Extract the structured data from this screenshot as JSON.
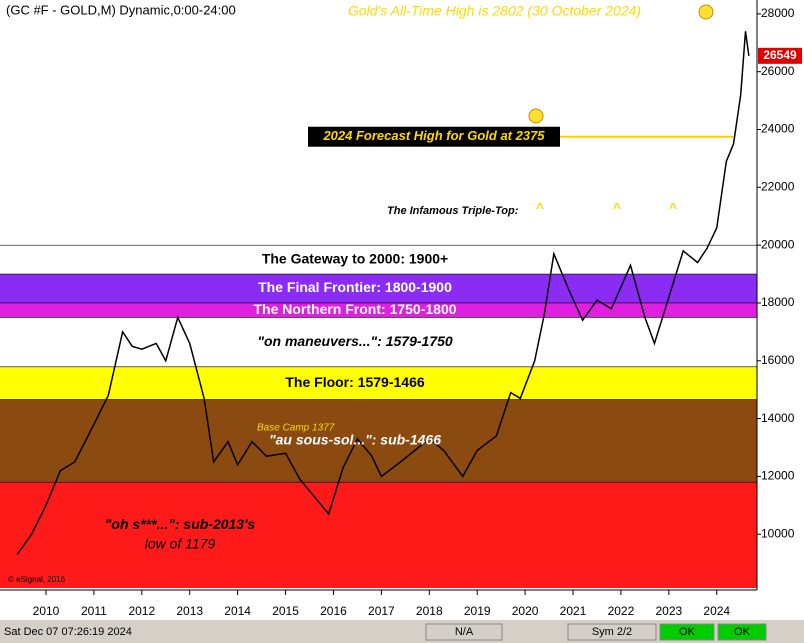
{
  "chart_data": {
    "type": "line",
    "title": "(GC #F - GOLD,M) Dynamic,0:00-24:00",
    "xlim": [
      2009.04,
      2024.84
    ],
    "xticks": [
      2010,
      2011,
      2012,
      2013,
      2014,
      2015,
      2016,
      2017,
      2018,
      2019,
      2020,
      2021,
      2022,
      2023,
      2024
    ],
    "ylim": [
      8140,
      28480
    ],
    "yticks": [
      10000,
      12000,
      14000,
      16000,
      18000,
      20000,
      22000,
      24000,
      26000,
      28000
    ],
    "series": [
      {
        "name": "GC #F",
        "color": "#000000",
        "x": [
          2009.4,
          2009.7,
          2010.0,
          2010.3,
          2010.6,
          2011.0,
          2011.3,
          2011.6,
          2011.8,
          2012.0,
          2012.3,
          2012.5,
          2012.75,
          2013.0,
          2013.3,
          2013.5,
          2013.8,
          2014.0,
          2014.3,
          2014.6,
          2015.0,
          2015.3,
          2015.6,
          2015.9,
          2016.2,
          2016.5,
          2016.8,
          2017.0,
          2017.4,
          2017.7,
          2018.0,
          2018.3,
          2018.7,
          2019.0,
          2019.4,
          2019.7,
          2019.9,
          2020.2,
          2020.4,
          2020.6,
          2020.9,
          2021.2,
          2021.5,
          2021.8,
          2022.2,
          2022.5,
          2022.7,
          2023.0,
          2023.3,
          2023.6,
          2023.8,
          2024.0,
          2024.2,
          2024.35,
          2024.5,
          2024.6,
          2024.67
        ],
        "values": [
          9300,
          10000,
          11000,
          12200,
          12500,
          13800,
          14800,
          17000,
          16500,
          16400,
          16600,
          16000,
          17500,
          16600,
          14700,
          12500,
          13200,
          12400,
          13200,
          12700,
          12800,
          11900,
          11300,
          10700,
          12300,
          13300,
          12700,
          12000,
          12500,
          12900,
          13300,
          12900,
          12000,
          12900,
          13400,
          14900,
          14700,
          16000,
          17600,
          19700,
          18500,
          17400,
          18100,
          17800,
          19300,
          17500,
          16600,
          18200,
          19800,
          19400,
          19900,
          20600,
          22900,
          23500,
          25200,
          27400,
          26549
        ],
        "value_labels": [
          null,
          null,
          null,
          null,
          null,
          null,
          null,
          null,
          null,
          null,
          null,
          null,
          null,
          null,
          null,
          null,
          null,
          null,
          null,
          null,
          null,
          null,
          null,
          null,
          null,
          null,
          null,
          null,
          null,
          null,
          null,
          null,
          null,
          null,
          null,
          null,
          null,
          null,
          null,
          null,
          null,
          null,
          null,
          null,
          null,
          null,
          null,
          null,
          null,
          null,
          null,
          null,
          null,
          null,
          null,
          null,
          "26549"
        ]
      }
    ],
    "bands": [
      {
        "from": 19000,
        "to": 20000,
        "label": "The Gateway to 2000:  1900+",
        "color": "#ffffff",
        "text_color": "#000000"
      },
      {
        "from": 18000,
        "to": 19000,
        "label": "The Final Frontier:  1800-1900",
        "color": "#8b2cf5",
        "text_color": "#ffffff"
      },
      {
        "from": 17500,
        "to": 18000,
        "label": "The Northern Front:  1750-1800",
        "color": "#e020e0",
        "text_color": "#ffffff"
      },
      {
        "from": 15790,
        "to": 17500,
        "label": "\"on maneuvers...\":  1579-1750",
        "color": "#ffffff",
        "text_color": "#000000"
      },
      {
        "from": 14660,
        "to": 15790,
        "label": "The Floor:  1579-1466",
        "color": "#ffff00",
        "text_color": "#000000"
      },
      {
        "from": 11800,
        "to": 14660,
        "label": "\"au sous-sol...\":  sub-1466",
        "color": "#8b4a10",
        "text_color": "#ffffff"
      },
      {
        "from": 8140,
        "to": 11800,
        "label": "\"oh s***...\":  sub-2013's",
        "color": "#ff1a1a",
        "text_color": "#000000"
      }
    ],
    "forecast": {
      "label": "2024 Forecast High for Gold at 2375",
      "value": 23750,
      "x_range": [
        2020.73,
        2024.38
      ]
    },
    "annotations": {
      "ath": "Gold's All-Time High is 2802 (30 October 2024)",
      "triple_top": "The Infamous Triple-Top:",
      "carets": [
        "^",
        "^",
        "^"
      ],
      "base_camp": "Base Camp 1377",
      "low": "low of 1179",
      "copyright": "© eSignal, 2016"
    },
    "status": {
      "datetime": "Sat Dec 07 07:26:19 2024",
      "na": "N/A",
      "sym": "Sym 2/2",
      "ok1": "OK",
      "ok2": "OK"
    }
  }
}
